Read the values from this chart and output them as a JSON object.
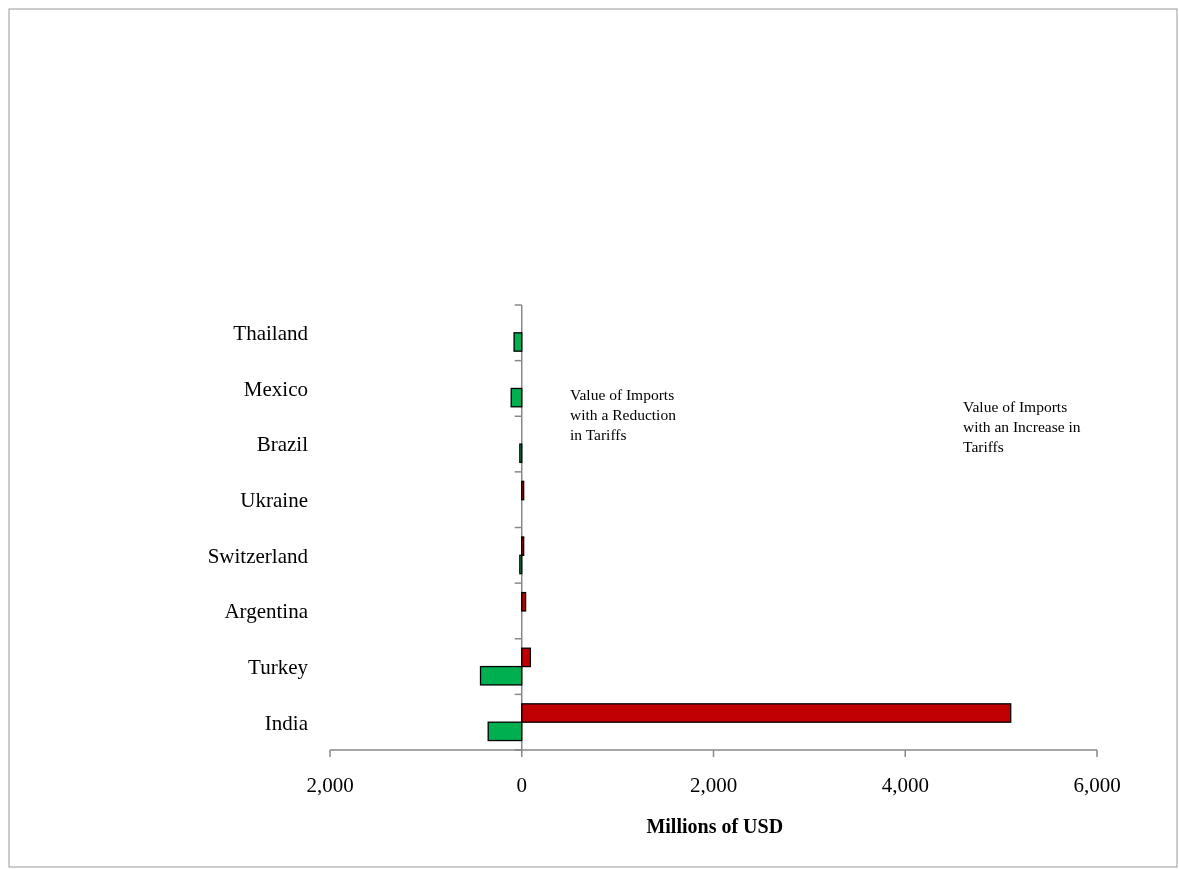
{
  "chart_data": {
    "type": "bar",
    "orientation": "horizontal",
    "xlabel": "Millions of USD",
    "categories": [
      "Thailand",
      "Mexico",
      "Brazil",
      "Ukraine",
      "Switzerland",
      "Argentina",
      "Turkey",
      "India"
    ],
    "series": [
      {
        "color": "#c00000",
        "values": [
          null,
          null,
          null,
          20,
          20,
          40,
          90,
          5100
        ]
      },
      {
        "color": "#00b050",
        "values": [
          -80,
          -110,
          -20,
          null,
          -20,
          null,
          -430,
          -350
        ]
      }
    ],
    "xlim": [
      -2000,
      6000
    ],
    "xticks": [
      {
        "value": -2000,
        "label": "2,000"
      },
      {
        "value": 0,
        "label": "0"
      },
      {
        "value": 2000,
        "label": "2,000"
      },
      {
        "value": 4000,
        "label": "4,000"
      },
      {
        "value": 6000,
        "label": "6,000"
      }
    ],
    "annotations": [
      "Value of Imports with a Reduction in Tariffs",
      "Value of Imports with an Increase in Tariffs"
    ]
  }
}
